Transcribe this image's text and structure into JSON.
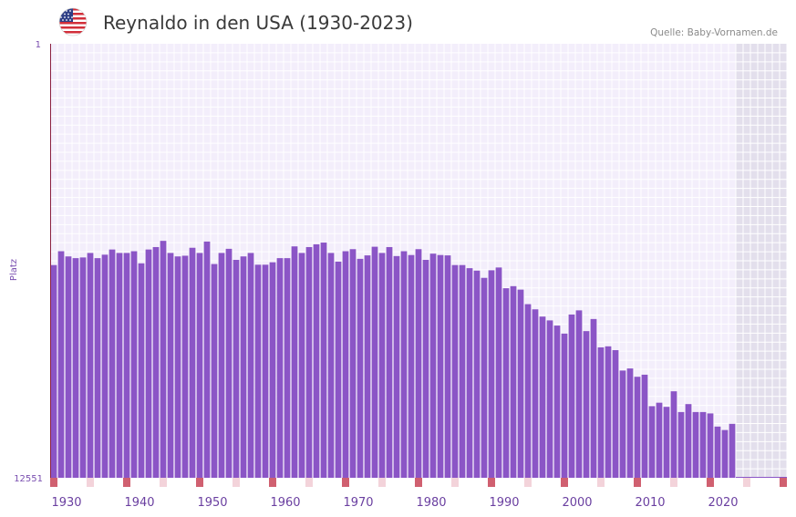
{
  "header": {
    "title": "Reynaldo in den USA (1930-2023)",
    "source": "Quelle: Baby-Vornamen.de"
  },
  "colors": {
    "bar": "#8b55c6",
    "plot_bg": "#f3eefb",
    "grid": "#ffffff",
    "future_bg": "#e3dfec",
    "axis": "#8b2040",
    "decade_marker": "#d06070",
    "year_marker": "#f3d3da"
  },
  "chart_data": {
    "type": "bar",
    "title": "Reynaldo in den USA (1930-2023)",
    "ylabel": "Platz",
    "xlabel": "",
    "y_inverted": true,
    "ylim": [
      1,
      12551
    ],
    "y_tick_labels": [
      "1",
      "12551"
    ],
    "xlim": [
      1928,
      2028
    ],
    "x_tick_labels": [
      "1930",
      "1940",
      "1950",
      "1960",
      "1970",
      "1980",
      "1990",
      "2000",
      "2010",
      "2020"
    ],
    "x_ticks": [
      1930,
      1940,
      1950,
      1960,
      1970,
      1980,
      1990,
      2000,
      2010,
      2020
    ],
    "forecast_start": 2022,
    "years": [
      1928,
      1929,
      1930,
      1931,
      1932,
      1933,
      1934,
      1935,
      1936,
      1937,
      1938,
      1939,
      1940,
      1941,
      1942,
      1943,
      1944,
      1945,
      1946,
      1947,
      1948,
      1949,
      1950,
      1951,
      1952,
      1953,
      1954,
      1955,
      1956,
      1957,
      1958,
      1959,
      1960,
      1961,
      1962,
      1963,
      1964,
      1965,
      1966,
      1967,
      1968,
      1969,
      1970,
      1971,
      1972,
      1973,
      1974,
      1975,
      1976,
      1977,
      1978,
      1979,
      1980,
      1981,
      1982,
      1983,
      1984,
      1985,
      1986,
      1987,
      1988,
      1989,
      1990,
      1991,
      1992,
      1993,
      1994,
      1995,
      1996,
      1997,
      1998,
      1999,
      2000,
      2001,
      2002,
      2003,
      2004,
      2005,
      2006,
      2007,
      2008,
      2009,
      2010,
      2011,
      2012,
      2013,
      2014,
      2015,
      2016,
      2017,
      2018,
      2019,
      2020,
      2021
    ],
    "values": [
      6400,
      6000,
      6150,
      6200,
      6180,
      6050,
      6200,
      6100,
      5950,
      6050,
      6050,
      6000,
      6350,
      5950,
      5880,
      5700,
      6050,
      6150,
      6130,
      5900,
      6050,
      5720,
      6370,
      6050,
      5930,
      6250,
      6150,
      6050,
      6390,
      6390,
      6320,
      6200,
      6200,
      5860,
      6050,
      5880,
      5800,
      5750,
      6050,
      6300,
      6000,
      5940,
      6220,
      6120,
      5870,
      6050,
      5880,
      6140,
      6000,
      6110,
      5940,
      6250,
      6070,
      6110,
      6120,
      6400,
      6400,
      6490,
      6560,
      6770,
      6550,
      6470,
      7070,
      7010,
      7110,
      7530,
      7680,
      7890,
      8000,
      8150,
      8380,
      7830,
      7710,
      8310,
      7960,
      8780,
      8750,
      8860,
      9450,
      9390,
      9630,
      9570,
      10480,
      10380,
      10500,
      10050,
      10650,
      10420,
      10650,
      10650,
      10690,
      11070,
      11170,
      10990
    ]
  }
}
